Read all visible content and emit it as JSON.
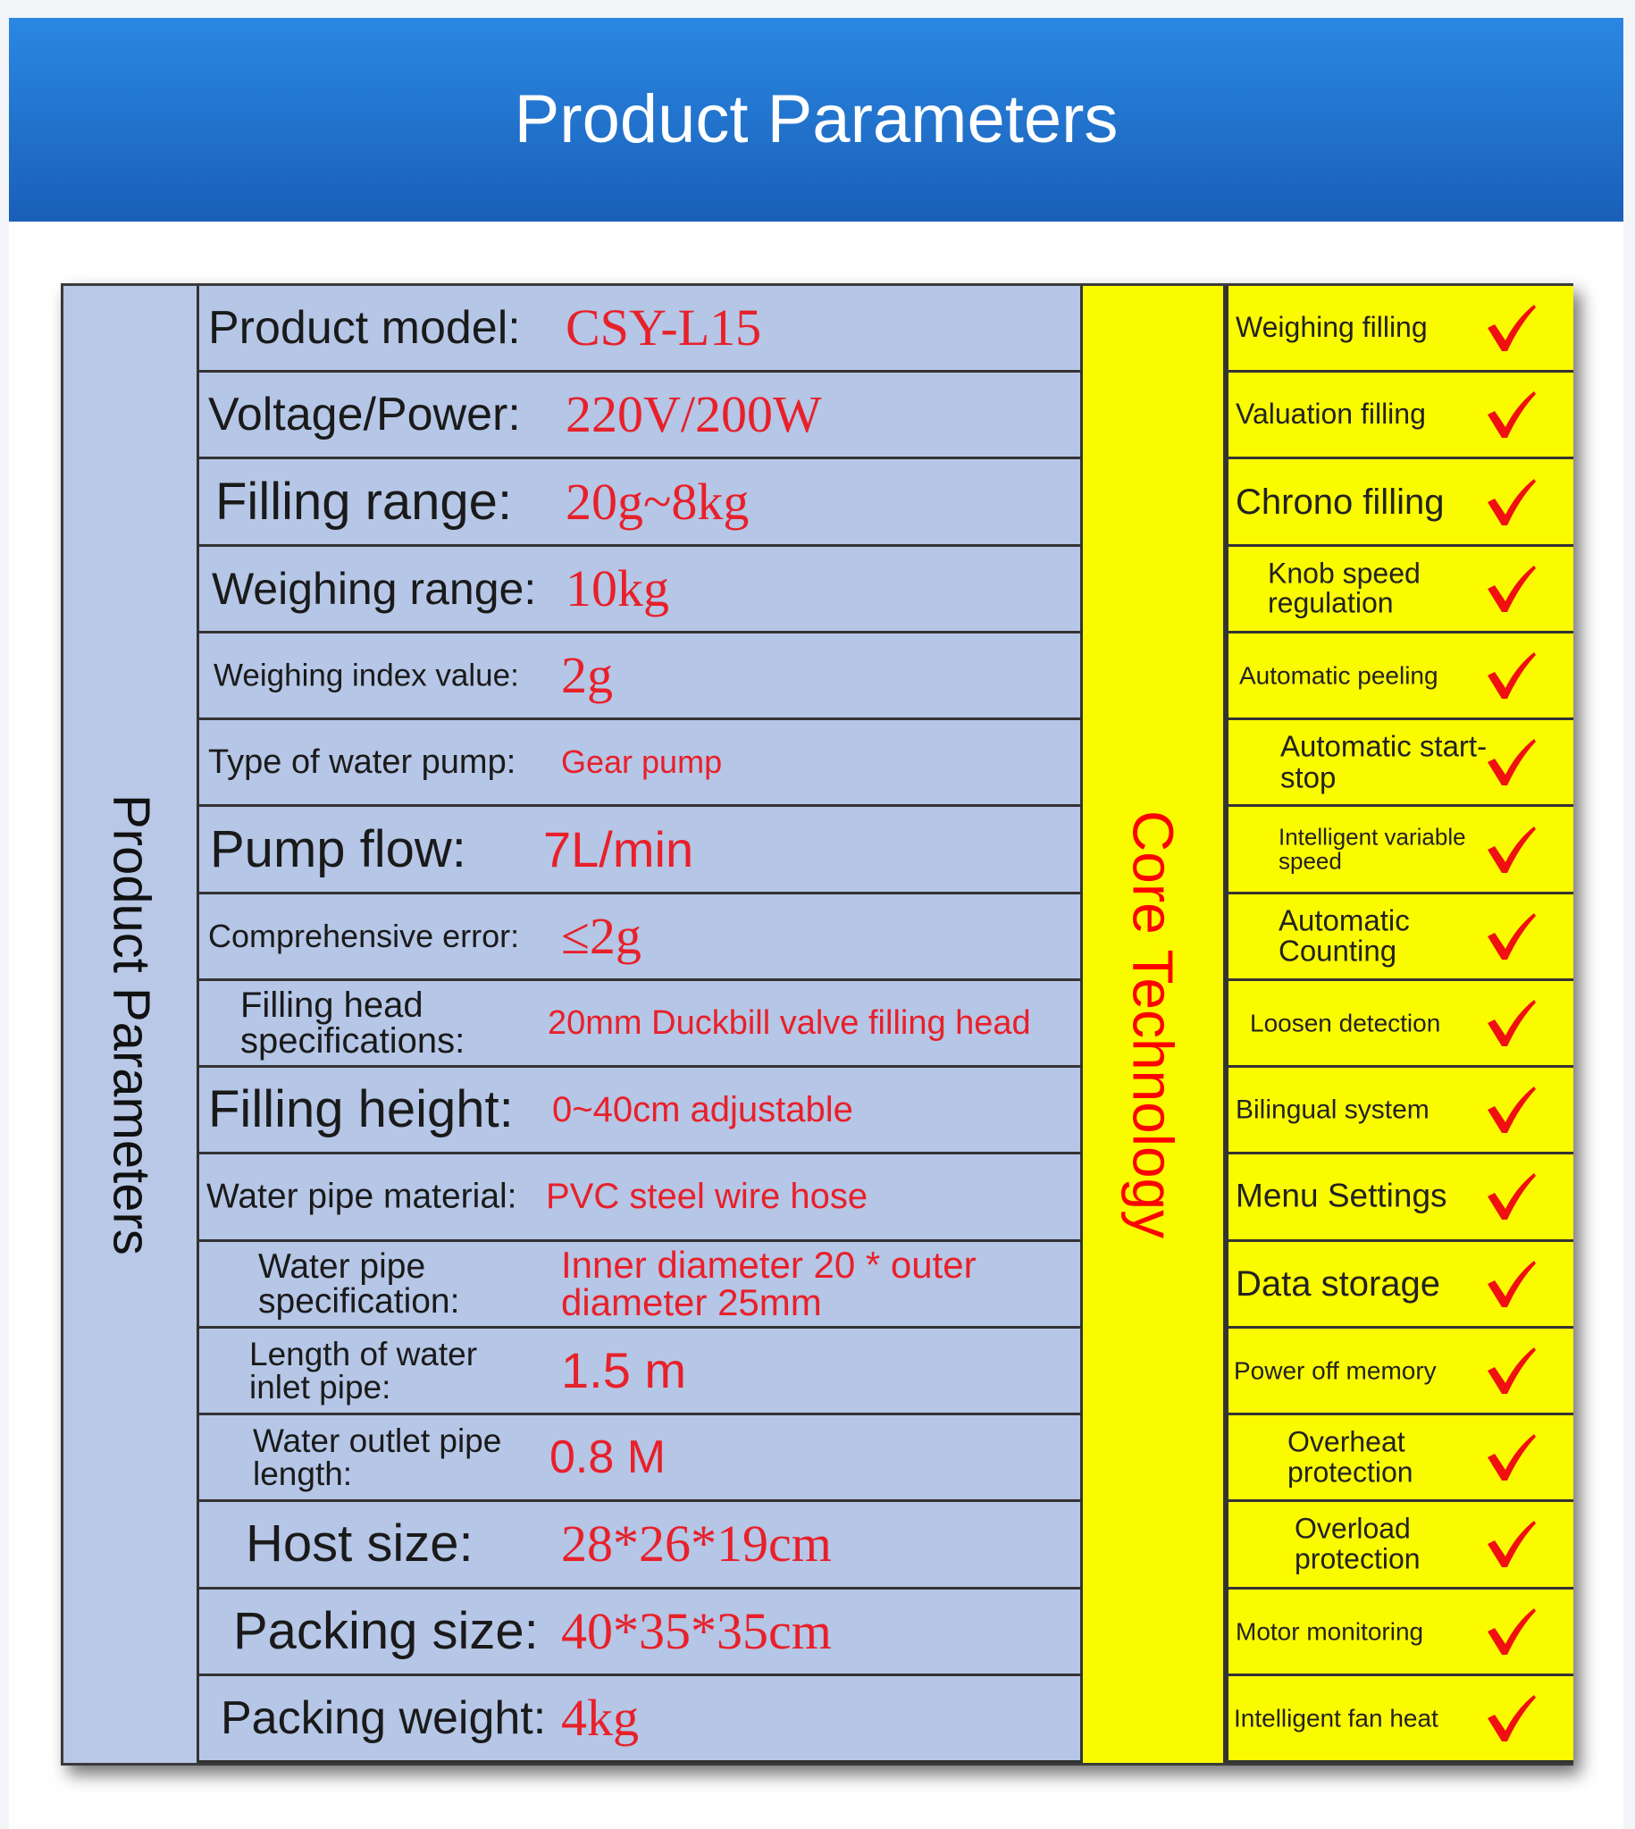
{
  "header": {
    "title": "Product Parameters"
  },
  "table": {
    "side_label": "Product Parameters",
    "core_label": "Core Technology",
    "rows": [
      {
        "label": "Product model:",
        "value": "CSY-L15"
      },
      {
        "label": "Voltage/Power:",
        "value": "220V/200W"
      },
      {
        "label": "Filling range:",
        "value": "20g~8kg"
      },
      {
        "label": "Weighing range:",
        "value": "10kg"
      },
      {
        "label": "Weighing index value:",
        "value": "2g"
      },
      {
        "label": "Type of water pump:",
        "value": "Gear pump"
      },
      {
        "label": "Pump flow:",
        "value": "7L/min"
      },
      {
        "label": "Comprehensive error:",
        "value": "≤2g"
      },
      {
        "label": "Filling head specifications:",
        "value": "20mm Duckbill valve filling head"
      },
      {
        "label": "Filling height:",
        "value": "0~40cm adjustable"
      },
      {
        "label": "Water pipe material:",
        "value": "PVC steel wire hose"
      },
      {
        "label": "Water pipe specification:",
        "value": "Inner diameter 20 * outer diameter 25mm"
      },
      {
        "label": "Length of water inlet pipe:",
        "value": "1.5 m"
      },
      {
        "label": "Water outlet pipe length:",
        "value": "0.8 M"
      },
      {
        "label": "Host size:",
        "value": "28*26*19cm"
      },
      {
        "label": "Packing size:",
        "value": "40*35*35cm"
      },
      {
        "label": "Packing weight:",
        "value": "4kg"
      }
    ],
    "features": [
      "Weighing filling",
      "Valuation filling",
      "Chrono filling",
      "Knob speed regulation",
      "Automatic peeling",
      "Automatic start-stop",
      "Intelligent variable speed",
      "Automatic Counting",
      "Loosen detection",
      "Bilingual system",
      "Menu Settings",
      "Data storage",
      "Power off memory",
      "Overheat protection",
      "Overload protection",
      "Motor monitoring",
      "Intelligent fan heat"
    ]
  }
}
